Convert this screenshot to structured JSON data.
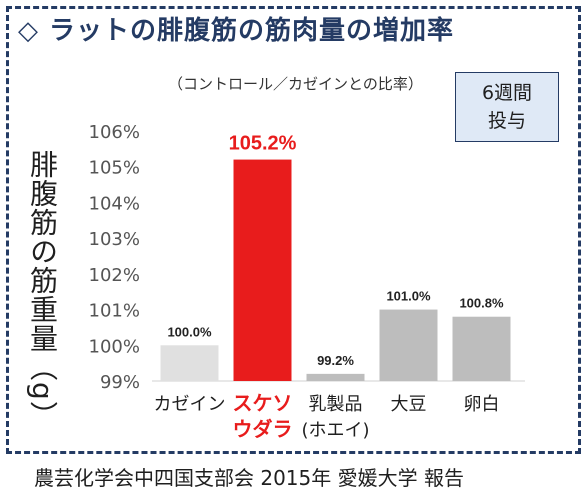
{
  "title": "◇ ラットの腓腹筋の筋肉量の増加率",
  "subtitle": "（コントロール／カゼインとの比率）",
  "badge": {
    "line1": "6週間",
    "line2": "投与"
  },
  "footer": "農芸化学会中四国支部会 2015年 愛媛大学 報告",
  "colors": {
    "frame": "#243b64",
    "highlight": "#e81c1c",
    "bar": "#bdbdbd",
    "bar_base": "#e0e0e0"
  },
  "chart_data": {
    "type": "bar",
    "ylabel": "腓腹筋の筋重量（g）",
    "xlabel": "",
    "ylim": [
      99,
      106
    ],
    "yticks": [
      "99%",
      "100%",
      "101%",
      "102%",
      "103%",
      "104%",
      "105%",
      "106%"
    ],
    "categories": [
      {
        "lines": [
          "カゼイン"
        ],
        "highlight": false
      },
      {
        "lines": [
          "スケソ",
          "ウダラ"
        ],
        "highlight": true
      },
      {
        "lines": [
          "乳製品",
          "(ホエイ)"
        ],
        "highlight": false
      },
      {
        "lines": [
          "大豆"
        ],
        "highlight": false
      },
      {
        "lines": [
          "卵白"
        ],
        "highlight": false
      }
    ],
    "values": [
      100.0,
      105.2,
      99.2,
      101.0,
      100.8
    ],
    "value_labels": [
      "100.0%",
      "105.2%",
      "99.2%",
      "101.0%",
      "100.8%"
    ],
    "grid": false,
    "legend": "none"
  }
}
